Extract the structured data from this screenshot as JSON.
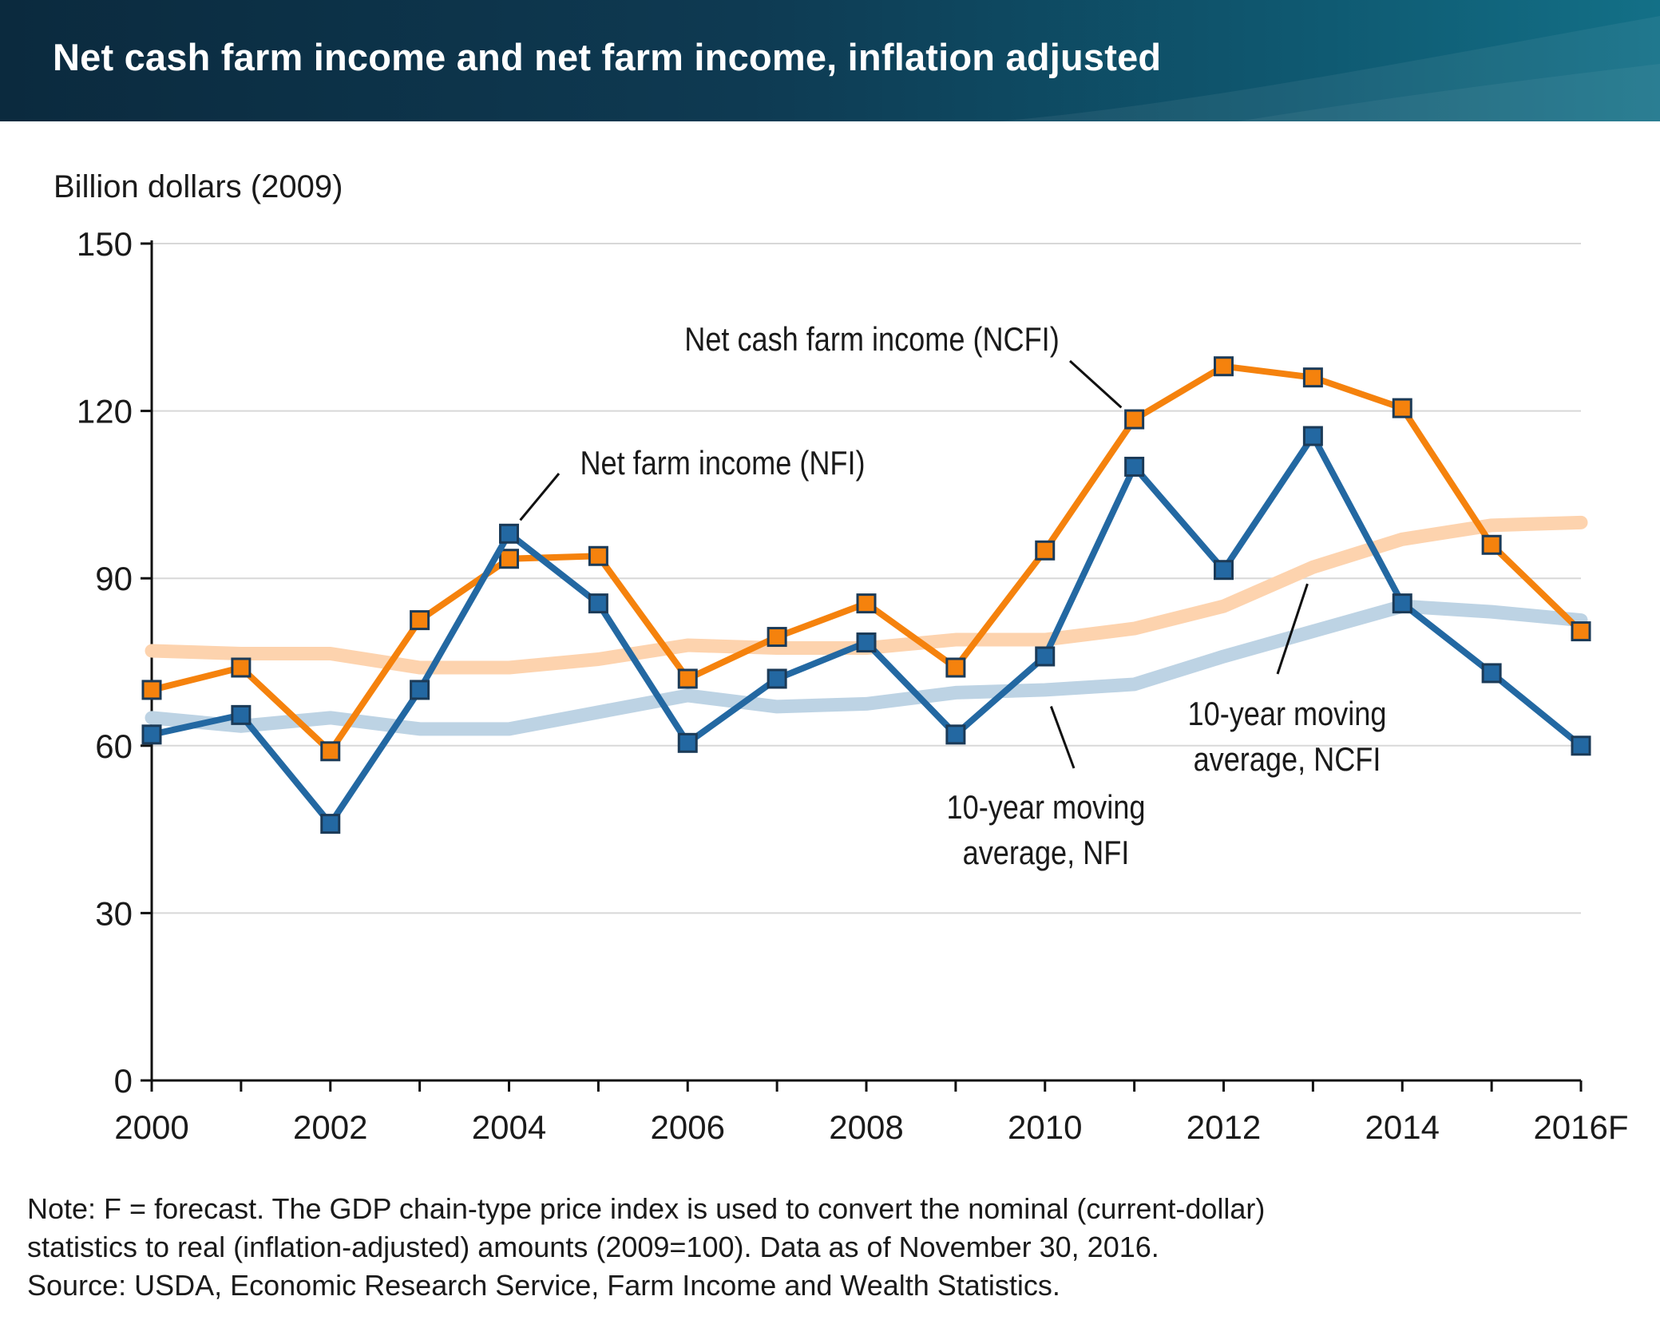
{
  "header": {
    "title": "Net cash farm income and net farm income, inflation adjusted"
  },
  "colors": {
    "banner_dark": "#0b2a3e",
    "banner_light": "#137087",
    "ncfi": "#f5820d",
    "nfi": "#2368a2",
    "ncfi_avg": "#fdd3ae",
    "nfi_avg": "#bdd3e4",
    "grid": "#d8d8d8"
  },
  "chart_data": {
    "type": "line",
    "ylabel": "Billion dollars (2009)",
    "ylim": [
      0,
      150
    ],
    "yticks": [
      "0",
      "30",
      "60",
      "90",
      "120",
      "150"
    ],
    "x": [
      "2000",
      "2001",
      "2002",
      "2003",
      "2004",
      "2005",
      "2006",
      "2007",
      "2008",
      "2009",
      "2010",
      "2011",
      "2012",
      "2013",
      "2014",
      "2015",
      "2016F"
    ],
    "xtick_labels": [
      "2000",
      "2002",
      "2004",
      "2006",
      "2008",
      "2010",
      "2012",
      "2014",
      "2016F"
    ],
    "grid": "horizontal",
    "series": [
      {
        "name": "10-year moving average, NCFI",
        "key": "ncfi_avg",
        "marker": false,
        "values": [
          77,
          76.5,
          76.5,
          74,
          74,
          75.5,
          78,
          77.5,
          77.5,
          79,
          79,
          81,
          85,
          92,
          97,
          99.5,
          100
        ]
      },
      {
        "name": "10-year moving average, NFI",
        "key": "nfi_avg",
        "marker": false,
        "values": [
          65,
          63.5,
          65,
          63,
          63,
          66,
          69,
          67,
          67.5,
          69.5,
          70,
          71,
          76,
          80.5,
          85,
          84,
          82.5
        ]
      },
      {
        "name": "Net cash farm income (NCFI)",
        "key": "ncfi",
        "marker": true,
        "values": [
          70,
          74,
          59,
          82.5,
          93.5,
          94,
          72,
          79.5,
          85.5,
          74,
          95,
          118.5,
          128,
          126,
          120.5,
          96,
          80.5
        ]
      },
      {
        "name": "Net farm income (NFI)",
        "key": "nfi",
        "marker": true,
        "values": [
          62,
          65.5,
          46,
          70,
          98,
          85.5,
          60.5,
          72,
          78.5,
          62,
          76,
          110,
          91.5,
          115.5,
          85.5,
          73,
          60
        ]
      }
    ],
    "annotations": {
      "ncfi": {
        "lines": [
          "Net cash farm income (NCFI)"
        ],
        "points_to": [
          "2011",
          118.5
        ]
      },
      "nfi": {
        "lines": [
          "Net farm income (NFI)"
        ],
        "points_to": [
          "2004",
          98
        ]
      },
      "ncfi_avg": {
        "lines": [
          "10-year moving",
          "average, NCFI"
        ],
        "points_to": [
          "2013",
          92
        ]
      },
      "nfi_avg": {
        "lines": [
          "10-year moving",
          "average, NFI"
        ],
        "points_to": [
          "2010",
          70
        ]
      }
    }
  },
  "footer": {
    "note_line1": "Note: F = forecast. The GDP chain-type price index is used to convert the nominal (current-dollar)",
    "note_line2": "statistics to real (inflation-adjusted) amounts (2009=100). Data as of November 30, 2016.",
    "source": "Source: USDA, Economic Research Service, Farm Income and Wealth Statistics."
  }
}
